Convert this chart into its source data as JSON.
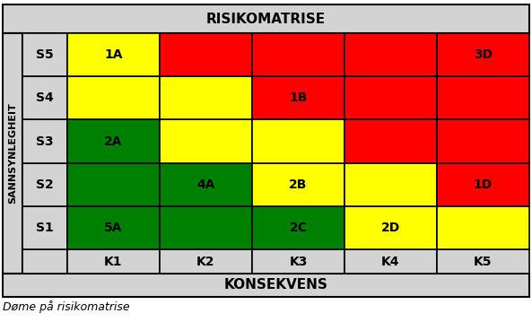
{
  "title": "RISIKOMATRISE",
  "xlabel": "KONSEKVENS",
  "ylabel": "SANNSYNLEGHEIT",
  "caption": "Døme på risikomatrise",
  "rows": [
    "S5",
    "S4",
    "S3",
    "S2",
    "S1"
  ],
  "cols": [
    "K1",
    "K2",
    "K3",
    "K4",
    "K5"
  ],
  "cell_colors": [
    [
      "#FFFF00",
      "#FF0000",
      "#FF0000",
      "#FF0000",
      "#FF0000"
    ],
    [
      "#FFFF00",
      "#FFFF00",
      "#FF0000",
      "#FF0000",
      "#FF0000"
    ],
    [
      "#008000",
      "#FFFF00",
      "#FFFF00",
      "#FF0000",
      "#FF0000"
    ],
    [
      "#008000",
      "#008000",
      "#FFFF00",
      "#FFFF00",
      "#FF0000"
    ],
    [
      "#008000",
      "#008000",
      "#008000",
      "#FFFF00",
      "#FFFF00"
    ]
  ],
  "cell_labels": [
    [
      "1A",
      "",
      "",
      "",
      "3D"
    ],
    [
      "",
      "",
      "1B",
      "",
      ""
    ],
    [
      "2A",
      "",
      "",
      "",
      ""
    ],
    [
      "",
      "4A",
      "2B",
      "",
      "1D"
    ],
    [
      "5A",
      "",
      "2C",
      "2D",
      ""
    ]
  ],
  "bg_color": "#D3D3D3",
  "border_color": "#000000",
  "figw": 5.93,
  "figh": 3.59,
  "dpi": 100
}
